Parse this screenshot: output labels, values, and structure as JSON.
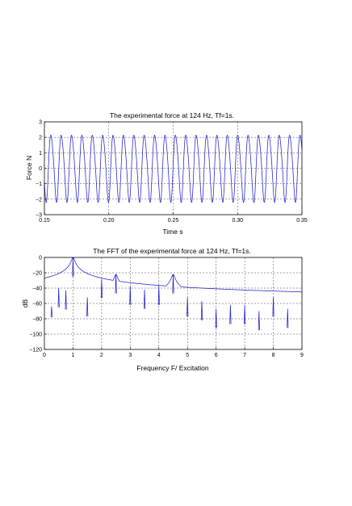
{
  "chart_data": [
    {
      "type": "line",
      "title": "The experimental force at 124 Hz, Tf=1s.",
      "xlabel": "Time s",
      "ylabel": "Force N",
      "xlim": [
        0.15,
        0.35
      ],
      "ylim": [
        -3,
        3
      ],
      "xticks": [
        0.15,
        0.2,
        0.25,
        0.3,
        0.35
      ],
      "xticklabels": [
        "0.15",
        "0.20",
        "0.25",
        "0.30",
        "0.35"
      ],
      "yticks": [
        -3,
        -2,
        -1,
        0,
        1,
        2,
        3
      ],
      "yticklabels": [
        "−3",
        "−2",
        "−1",
        "0",
        "1",
        "2",
        "3"
      ],
      "grid": true,
      "color": "#1f1fd1",
      "series": [
        {
          "signal": "periodic",
          "frequency_hz": 124,
          "amplitude_max": 2.4,
          "amplitude_min": -2.2,
          "x_start": 0.15,
          "x_end": 0.35
        }
      ]
    },
    {
      "type": "line",
      "title": "The FFT of the experimental force at 124 Hz, Tf=1s.",
      "xlabel": "Frequency F/ Excitation",
      "ylabel": "dB",
      "xlim": [
        0,
        9
      ],
      "ylim": [
        -120,
        0
      ],
      "xticks": [
        0,
        1,
        2,
        3,
        4,
        5,
        6,
        7,
        8,
        9
      ],
      "xticklabels": [
        "0",
        "1",
        "2",
        "3",
        "4",
        "5",
        "6",
        "7",
        "8",
        "9"
      ],
      "yticks": [
        -120,
        -100,
        -80,
        -60,
        -40,
        -20,
        0
      ],
      "yticklabels": [
        "−120",
        "−100",
        "−80",
        "−60",
        "−40",
        "−20",
        "0"
      ],
      "grid": true,
      "color": "#1f1fd1",
      "series": [
        {
          "peaks": [
            {
              "x": 0.25,
              "y": -64
            },
            {
              "x": 0.5,
              "y": -40
            },
            {
              "x": 0.75,
              "y": -43
            },
            {
              "x": 1.0,
              "y": 0
            },
            {
              "x": 1.5,
              "y": -52
            },
            {
              "x": 2.0,
              "y": -28
            },
            {
              "x": 2.5,
              "y": -22
            },
            {
              "x": 3.0,
              "y": -37
            },
            {
              "x": 3.5,
              "y": -42
            },
            {
              "x": 4.0,
              "y": -37
            },
            {
              "x": 4.5,
              "y": -22
            },
            {
              "x": 5.0,
              "y": -52
            },
            {
              "x": 5.5,
              "y": -57
            },
            {
              "x": 6.0,
              "y": -67
            },
            {
              "x": 6.5,
              "y": -62
            },
            {
              "x": 7.0,
              "y": -62
            },
            {
              "x": 7.5,
              "y": -70
            },
            {
              "x": 8.0,
              "y": -52
            },
            {
              "x": 8.5,
              "y": -67
            }
          ],
          "baseline": [
            {
              "x": 0,
              "y": -80
            },
            {
              "x": 1,
              "y": -72
            },
            {
              "x": 2,
              "y": -82
            },
            {
              "x": 3,
              "y": -84
            },
            {
              "x": 4,
              "y": -86
            },
            {
              "x": 5,
              "y": -90
            },
            {
              "x": 6,
              "y": -92
            },
            {
              "x": 7,
              "y": -94
            },
            {
              "x": 8,
              "y": -98
            },
            {
              "x": 9,
              "y": -92
            }
          ]
        }
      ]
    }
  ]
}
